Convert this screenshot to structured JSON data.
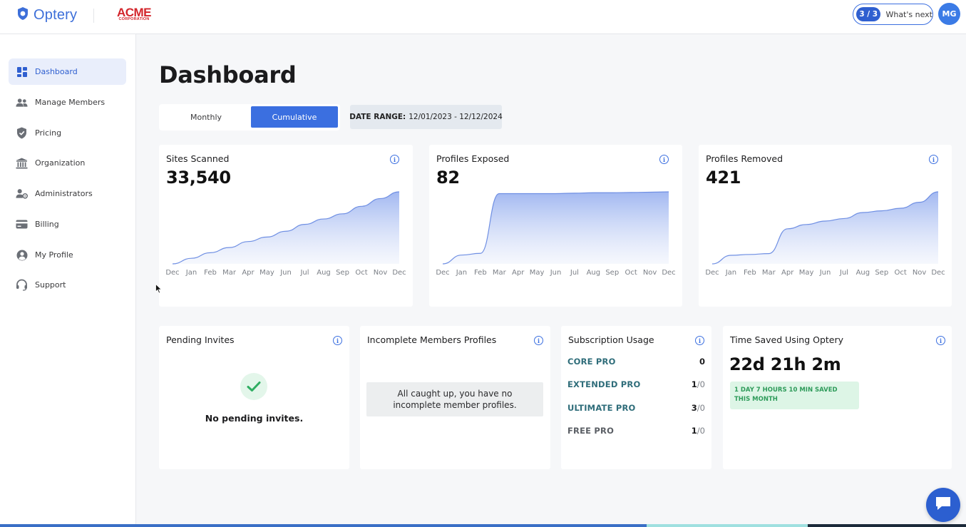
{
  "brand": {
    "name": "Optery",
    "partner_main": "ACME",
    "partner_sub": "CORPORATION"
  },
  "header": {
    "steps_badge": "3 / 3",
    "whats_next": "What's next",
    "avatar_initials": "MG"
  },
  "sidebar": {
    "items": [
      {
        "label": "Dashboard",
        "icon": "dashboard-icon",
        "active": true
      },
      {
        "label": "Manage Members",
        "icon": "users-icon"
      },
      {
        "label": "Pricing",
        "icon": "shield-check-icon"
      },
      {
        "label": "Organization",
        "icon": "building-icon"
      },
      {
        "label": "Administrators",
        "icon": "user-gear-icon"
      },
      {
        "label": "Billing",
        "icon": "credit-card-icon"
      },
      {
        "label": "My Profile",
        "icon": "user-circle-icon"
      },
      {
        "label": "Support",
        "icon": "headset-icon"
      }
    ]
  },
  "main": {
    "title": "Dashboard",
    "toggle": {
      "monthly": "Monthly",
      "cumulative": "Cumulative",
      "selected": "Cumulative"
    },
    "date_range_label": "DATE RANGE:",
    "date_range_value": "12/01/2023 - 12/12/2024"
  },
  "stats": [
    {
      "title": "Sites Scanned",
      "value": "33,540"
    },
    {
      "title": "Profiles Exposed",
      "value": "82"
    },
    {
      "title": "Profiles Removed",
      "value": "421"
    }
  ],
  "chart_data": [
    {
      "type": "area",
      "title": "Sites Scanned",
      "x": [
        "Dec",
        "Jan",
        "Feb",
        "Mar",
        "Apr",
        "May",
        "Jun",
        "Jul",
        "Aug",
        "Sep",
        "Oct",
        "Nov",
        "Dec"
      ],
      "values": [
        0,
        2600,
        5200,
        7600,
        10400,
        12500,
        15200,
        18400,
        20900,
        23300,
        26800,
        30400,
        33540
      ],
      "ylim": [
        0,
        33540
      ]
    },
    {
      "type": "area",
      "title": "Profiles Exposed",
      "x": [
        "Dec",
        "Jan",
        "Feb",
        "Mar",
        "Apr",
        "May",
        "Jun",
        "Jul",
        "Aug",
        "Sep",
        "Oct",
        "Nov",
        "Dec"
      ],
      "values": [
        0,
        10,
        12,
        80,
        80,
        80,
        80,
        80.5,
        81,
        81,
        81.3,
        81.6,
        82
      ],
      "ylim": [
        0,
        82
      ]
    },
    {
      "type": "area",
      "title": "Profiles Removed",
      "x": [
        "Dec",
        "Jan",
        "Feb",
        "Mar",
        "Apr",
        "May",
        "Jun",
        "Jul",
        "Aug",
        "Sep",
        "Oct",
        "Nov",
        "Dec"
      ],
      "values": [
        0,
        50,
        55,
        60,
        205,
        230,
        250,
        265,
        300,
        310,
        325,
        360,
        421
      ],
      "ylim": [
        0,
        421
      ]
    }
  ],
  "pending": {
    "title": "Pending Invites",
    "text": "No pending invites."
  },
  "incomplete": {
    "title": "Incomplete Members Profiles",
    "text": "All caught up, you have no incomplete member profiles."
  },
  "subscription": {
    "title": "Subscription Usage",
    "rows": [
      {
        "name": "CORE PRO",
        "used": "0",
        "total": ""
      },
      {
        "name": "EXTENDED PRO",
        "used": "1",
        "total": "/0"
      },
      {
        "name": "ULTIMATE PRO",
        "used": "3",
        "total": "/0"
      },
      {
        "name": "FREE PRO",
        "used": "1",
        "total": "/0"
      }
    ]
  },
  "time_saved": {
    "title": "Time Saved Using Optery",
    "value": "22d 21h 2m",
    "badge": "1 DAY 7 HOURS 10 MIN SAVED THIS MONTH"
  },
  "colors": {
    "accent": "#3b6fe0",
    "chart_fill": "#9db4f0",
    "success": "#2e9b5a"
  }
}
